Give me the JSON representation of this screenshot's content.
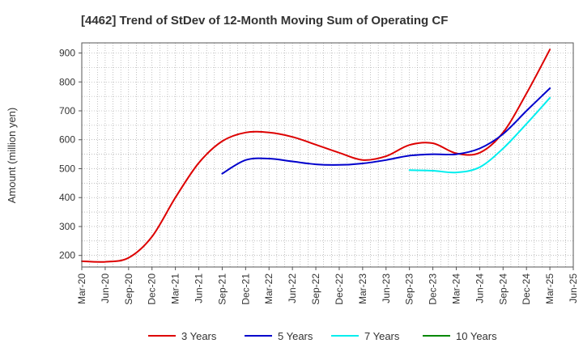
{
  "chart_data": {
    "type": "line",
    "title": "[4462]  Trend of StDev of 12-Month Moving Sum of Operating CF",
    "xlabel": "",
    "ylabel": "Amount (million yen)",
    "ylim": [
      160,
      935
    ],
    "yticks": [
      200,
      300,
      400,
      500,
      600,
      700,
      800,
      900
    ],
    "xticks": [
      "Mar-20",
      "Jun-20",
      "Sep-20",
      "Dec-20",
      "Mar-21",
      "Jun-21",
      "Sep-21",
      "Dec-21",
      "Mar-22",
      "Jun-22",
      "Sep-22",
      "Dec-22",
      "Mar-23",
      "Jun-23",
      "Sep-23",
      "Dec-23",
      "Mar-24",
      "Jun-24",
      "Sep-24",
      "Dec-24",
      "Mar-25",
      "Jun-25"
    ],
    "grid": true,
    "legend_position": "bottom",
    "series": [
      {
        "name": "3 Years",
        "color": "#dd0000",
        "points": [
          [
            "Mar-20",
            180
          ],
          [
            "Jun-20",
            178
          ],
          [
            "Sep-20",
            192
          ],
          [
            "Dec-20",
            265
          ],
          [
            "Mar-21",
            400
          ],
          [
            "Jun-21",
            520
          ],
          [
            "Sep-21",
            595
          ],
          [
            "Dec-21",
            625
          ],
          [
            "Mar-22",
            625
          ],
          [
            "Jun-22",
            610
          ],
          [
            "Sep-22",
            583
          ],
          [
            "Dec-22",
            555
          ],
          [
            "Mar-23",
            530
          ],
          [
            "Jun-23",
            543
          ],
          [
            "Sep-23",
            582
          ],
          [
            "Dec-23",
            588
          ],
          [
            "Mar-24",
            553
          ],
          [
            "Jun-24",
            555
          ],
          [
            "Sep-24",
            625
          ],
          [
            "Dec-24",
            760
          ],
          [
            "Mar-25",
            912
          ]
        ]
      },
      {
        "name": "5 Years",
        "color": "#0000cc",
        "points": [
          [
            "Sep-21",
            483
          ],
          [
            "Dec-21",
            530
          ],
          [
            "Mar-22",
            535
          ],
          [
            "Jun-22",
            525
          ],
          [
            "Sep-22",
            515
          ],
          [
            "Dec-22",
            513
          ],
          [
            "Mar-23",
            518
          ],
          [
            "Jun-23",
            530
          ],
          [
            "Sep-23",
            545
          ],
          [
            "Dec-23",
            550
          ],
          [
            "Mar-24",
            550
          ],
          [
            "Jun-24",
            570
          ],
          [
            "Sep-24",
            620
          ],
          [
            "Dec-24",
            700
          ],
          [
            "Mar-25",
            778
          ]
        ]
      },
      {
        "name": "7 Years",
        "color": "#00eeee",
        "points": [
          [
            "Sep-23",
            495
          ],
          [
            "Dec-23",
            493
          ],
          [
            "Mar-24",
            487
          ],
          [
            "Jun-24",
            505
          ],
          [
            "Sep-24",
            570
          ],
          [
            "Dec-24",
            655
          ],
          [
            "Mar-25",
            745
          ]
        ]
      },
      {
        "name": "10 Years",
        "color": "#008800",
        "points": []
      }
    ]
  }
}
